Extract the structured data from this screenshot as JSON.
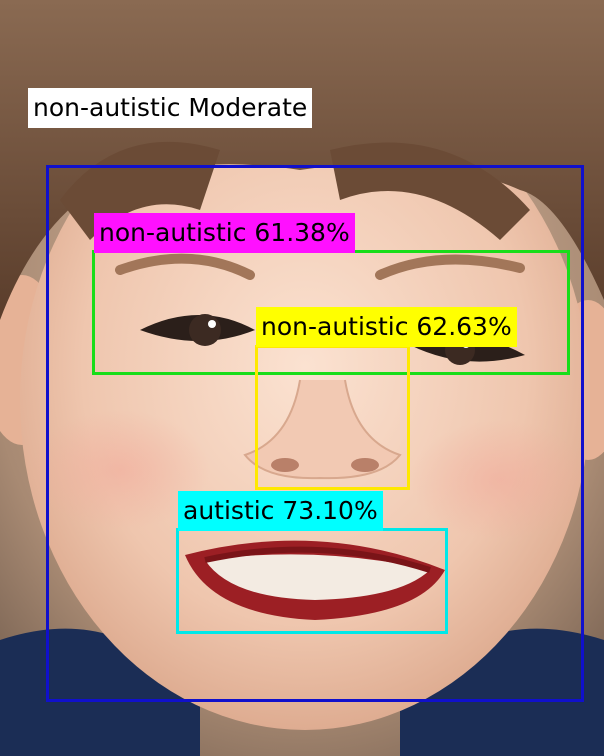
{
  "overall_label": "non-autistic Moderate",
  "detections": [
    {
      "region": "face",
      "label": "",
      "color": "#1010cc"
    },
    {
      "region": "eyes",
      "label": "non-autistic 61.38%",
      "color": "#19dd19",
      "tag_color": "#ff10ff"
    },
    {
      "region": "nose",
      "label": "non-autistic 62.63%",
      "color": "#ffe800",
      "tag_color": "#ffff00"
    },
    {
      "region": "mouth",
      "label": "autistic 73.10%",
      "color": "#00e8e8",
      "tag_color": "#00ffff"
    }
  ]
}
